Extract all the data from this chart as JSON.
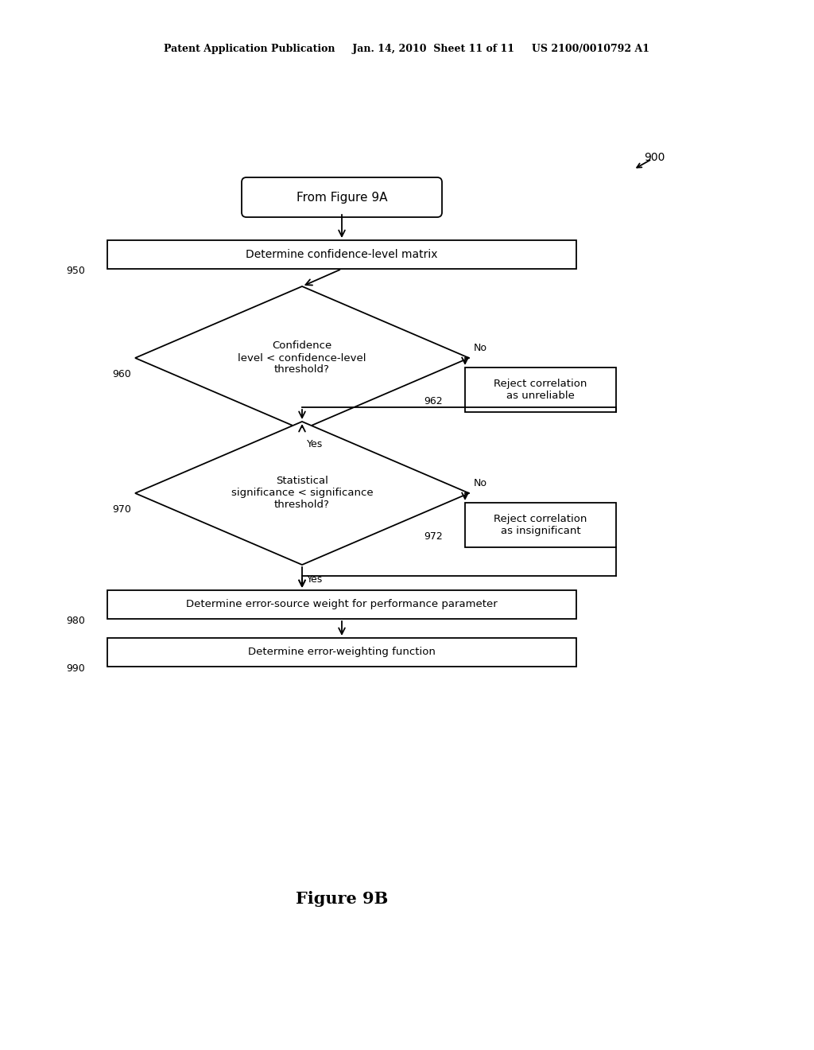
{
  "bg_color": "#ffffff",
  "header_left": "Patent Application Publication",
  "header_mid": "Jan. 14, 2010  Sheet 11 of 11",
  "header_right": "US 2100/0010792 A1",
  "header_full": "Patent Application Publication     Jan. 14, 2010  Sheet 11 of 11     US 2100/0010792 A1",
  "figure_label": "Figure 9B",
  "ref_900": "900",
  "term_label": "From Figure 9A",
  "b950_label": "Determine confidence-level matrix",
  "b950_ref": "950",
  "d960_label": "Confidence\nlevel < confidence-level\nthreshold?",
  "d960_ref": "960",
  "b962_label": "Reject correlation\nas unreliable",
  "b962_ref": "962",
  "d970_label": "Statistical\nsignificance < significance\nthreshold?",
  "d970_ref": "970",
  "b972_label": "Reject correlation\nas insignificant",
  "b972_ref": "972",
  "b980_label": "Determine error-source weight for performance parameter",
  "b980_ref": "980",
  "b990_label": "Determine error-weighting function",
  "b990_ref": "990",
  "yes_label": "Yes",
  "no_label": "No",
  "font_size_header": 9,
  "font_size_node": 10,
  "font_size_ref": 9,
  "font_size_yesno": 9,
  "font_size_figure": 15,
  "font_size_900": 10
}
